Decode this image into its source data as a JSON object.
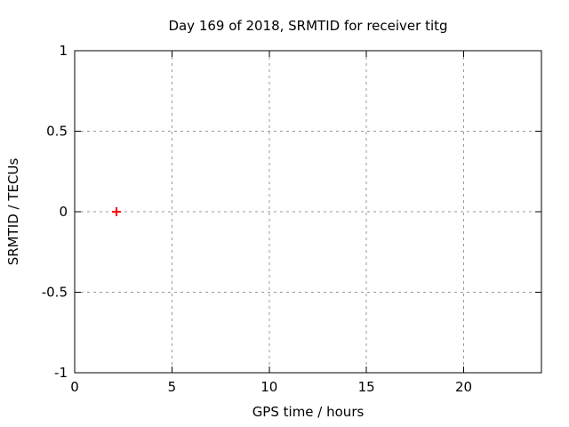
{
  "chart_data": {
    "type": "scatter",
    "title": "Day 169 of 2018, SRMTID for receiver titg",
    "xlabel": "GPS time / hours",
    "ylabel": "SRMTID / TECUs",
    "xlim": [
      0,
      24
    ],
    "ylim": [
      -1,
      1
    ],
    "x_ticks": [
      0,
      5,
      10,
      15,
      20
    ],
    "x_tick_labels": [
      "0",
      "5",
      "10",
      "15",
      "20"
    ],
    "y_ticks": [
      1,
      0.5,
      0,
      -0.5,
      -1
    ],
    "y_tick_labels": [
      "1",
      "0.5",
      "0",
      "-0.5",
      "-1"
    ],
    "grid": true,
    "legend_position": "none",
    "series": [
      {
        "marker": "plus",
        "color": "#ff0000",
        "points": [
          {
            "x": 2.15,
            "y": 0
          }
        ]
      }
    ],
    "colors": {
      "background": "#ffffff",
      "border": "#000000",
      "grid": "#999999",
      "text": "#000000",
      "point": "#ff0000"
    }
  }
}
